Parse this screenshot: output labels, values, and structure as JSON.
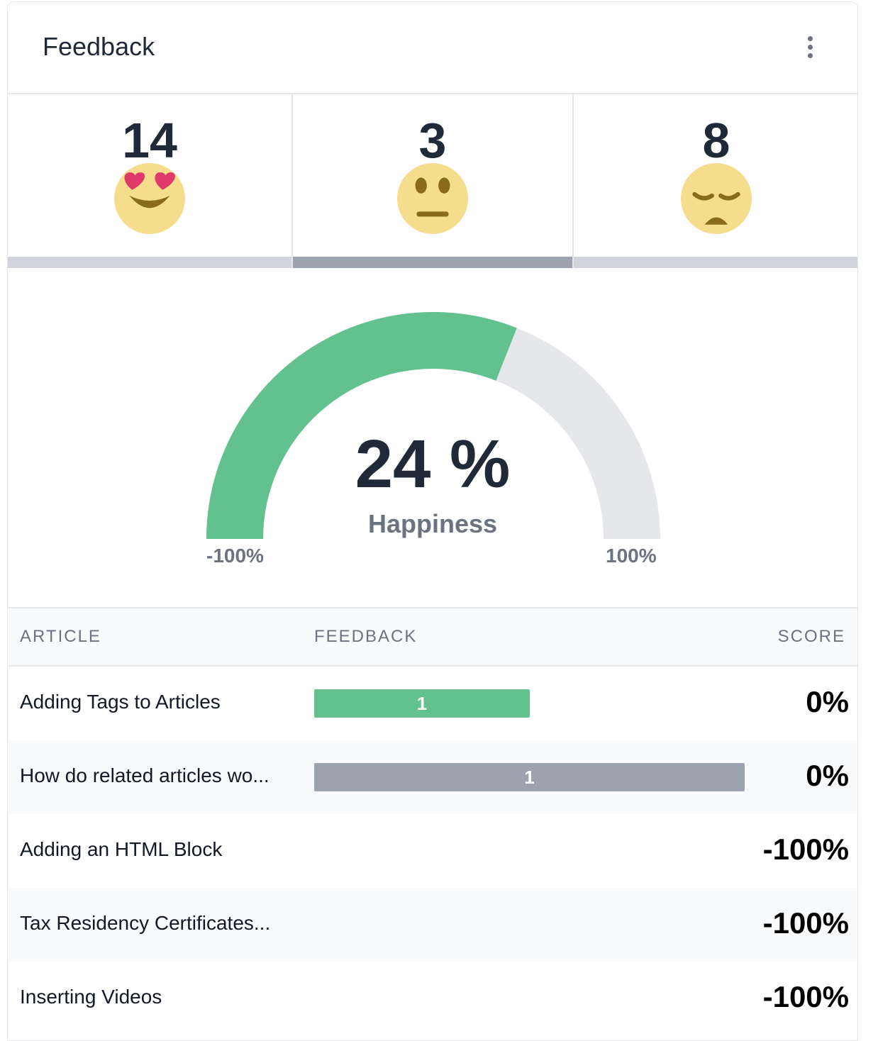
{
  "card": {
    "title": "Feedback"
  },
  "stats": [
    {
      "count": "14",
      "emoji": "heart-eyes-face",
      "selected": false
    },
    {
      "count": "3",
      "emoji": "neutral-face",
      "selected": true
    },
    {
      "count": "8",
      "emoji": "pensive-face",
      "selected": false
    }
  ],
  "gauge": {
    "value": 24,
    "value_label": "24 %",
    "label": "Happiness",
    "min": -100,
    "max": 100,
    "min_label": "-100%",
    "max_label": "100%",
    "fill_color": "#63c18f",
    "track_color": "#e5e7eb"
  },
  "table": {
    "headers": {
      "article": "ARTICLE",
      "feedback": "FEEDBACK",
      "score": "SCORE"
    },
    "rows": [
      {
        "article": "Adding Tags to Articles",
        "feedback_label": "1",
        "feedback_fraction": 0.5,
        "feedback_color": "#63c18f",
        "score": "0%"
      },
      {
        "article": "How do related articles wo...",
        "feedback_label": "1",
        "feedback_fraction": 1.0,
        "feedback_color": "#9ca3af",
        "score": "0%"
      },
      {
        "article": "Adding an HTML Block",
        "feedback_label": "",
        "feedback_fraction": 0,
        "feedback_color": "",
        "score": "-100%"
      },
      {
        "article": "Tax Residency Certificates...",
        "feedback_label": "",
        "feedback_fraction": 0,
        "feedback_color": "",
        "score": "-100%"
      },
      {
        "article": "Inserting Videos",
        "feedback_label": "",
        "feedback_fraction": 0,
        "feedback_color": "",
        "score": "-100%"
      }
    ]
  }
}
